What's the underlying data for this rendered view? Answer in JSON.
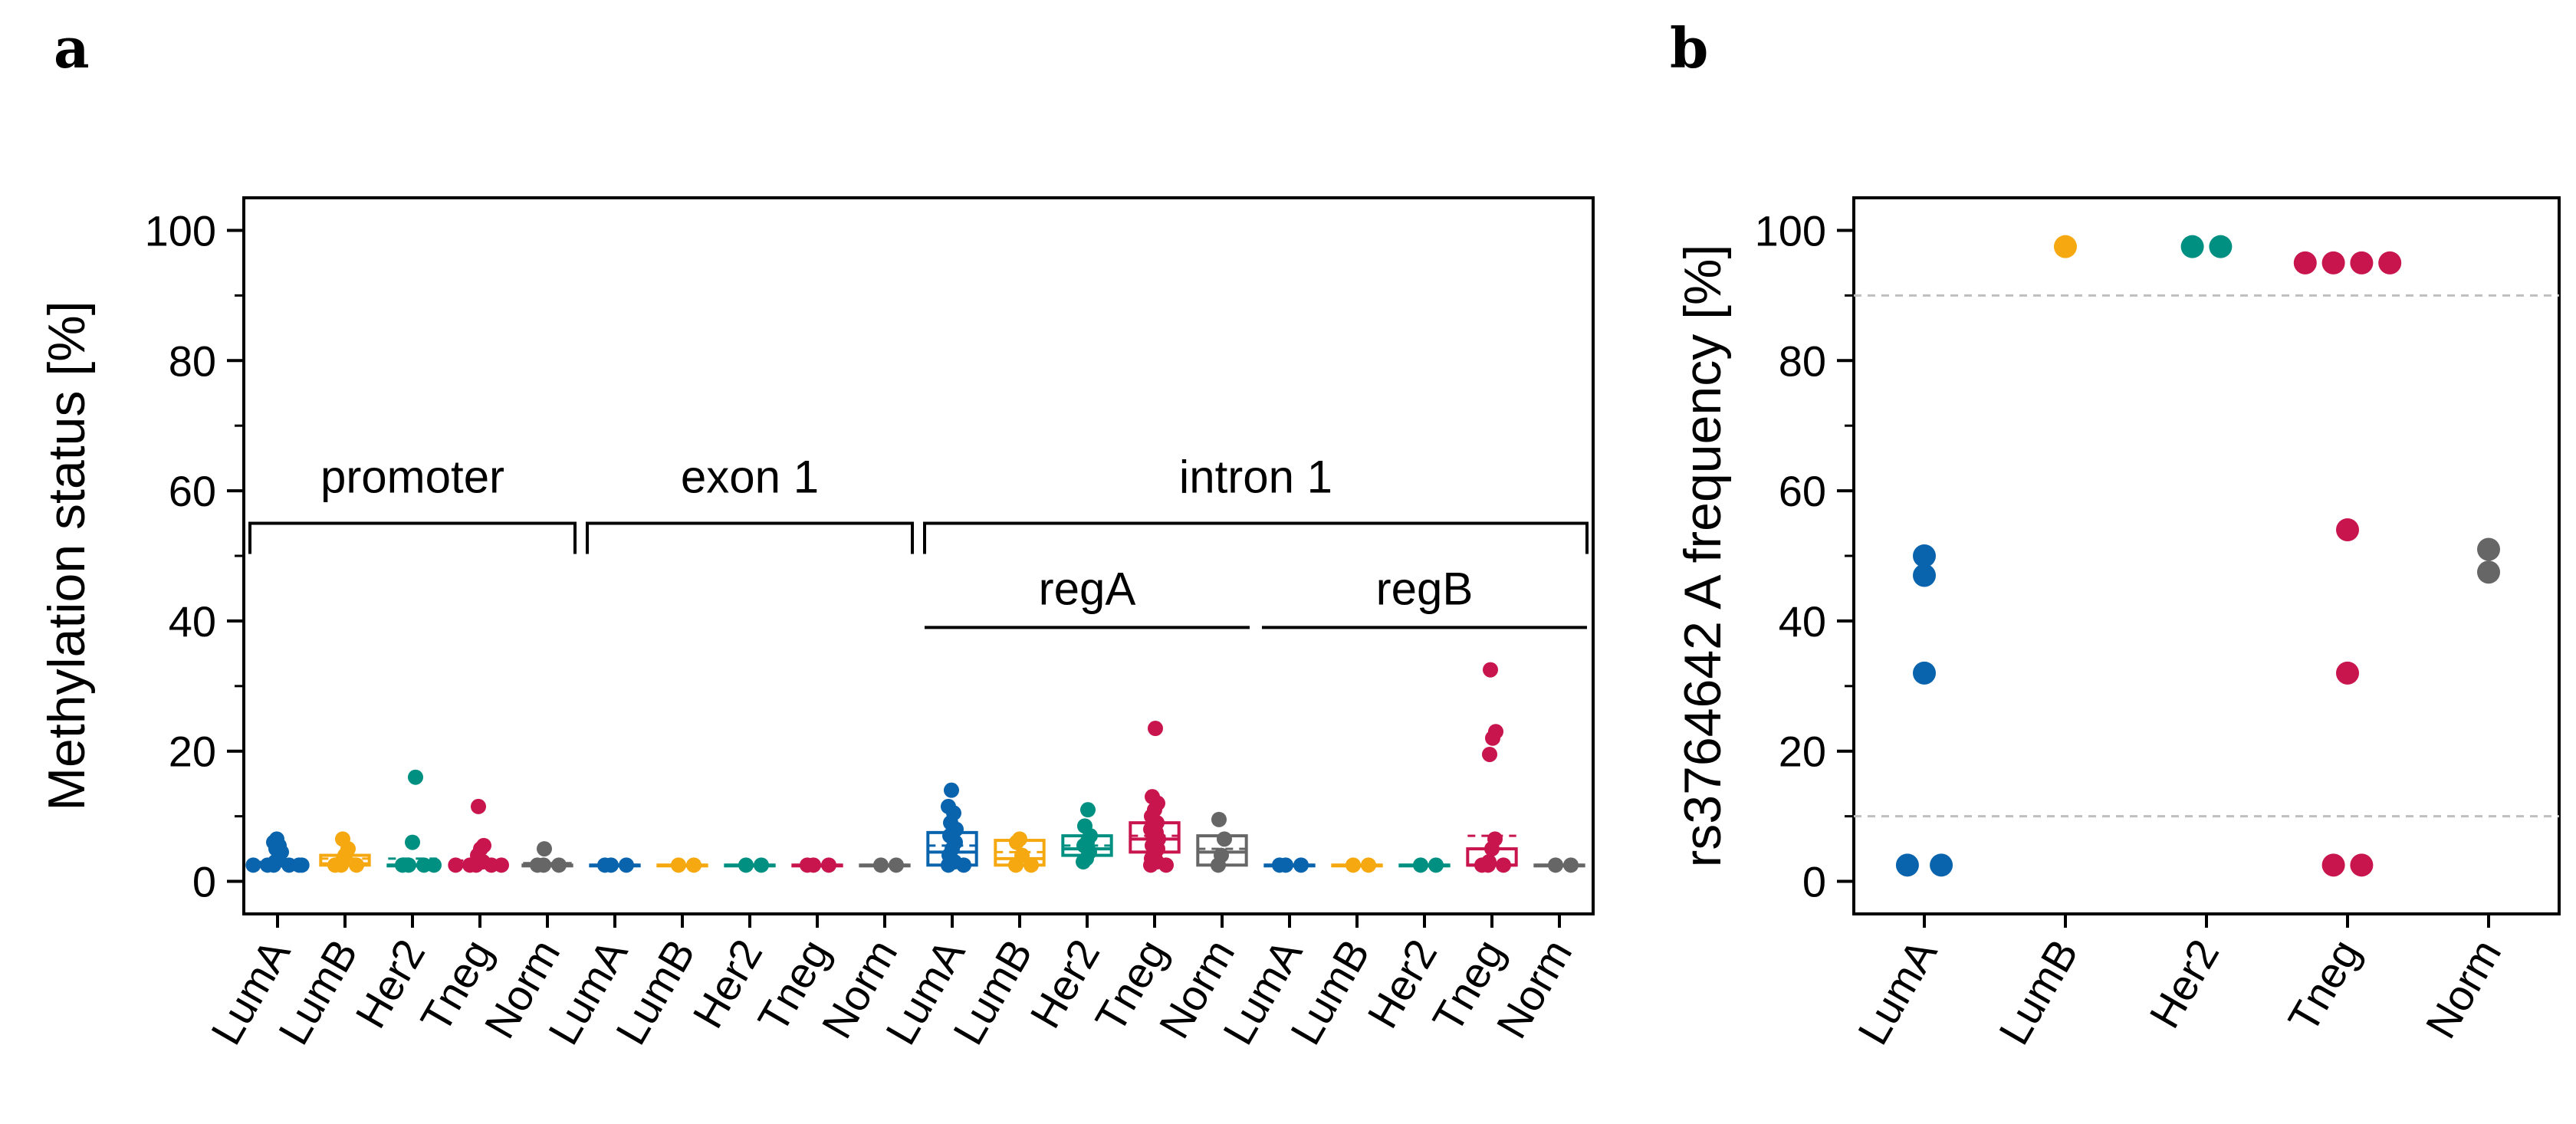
{
  "colors": {
    "LumA": "#0a64ad",
    "LumB": "#f5a80f",
    "Her2": "#009081",
    "Tneg": "#c8154d",
    "Norm": "#666666",
    "axis": "#000000",
    "guide": "#bfbfbf"
  },
  "chart_data": [
    {
      "panel": "a",
      "type": "box",
      "ylabel": "Methylation status [%]",
      "ylim": [
        -5,
        105
      ],
      "yticks": [
        0,
        20,
        40,
        60,
        80,
        100
      ],
      "ytick_labels": [
        "0",
        "20",
        "40",
        "60",
        "80",
        "100"
      ],
      "regions": [
        {
          "label": "promoter",
          "groups": [
            0,
            4
          ]
        },
        {
          "label": "exon 1",
          "groups": [
            5,
            9
          ]
        },
        {
          "label": "intron 1",
          "groups": [
            10,
            19
          ]
        }
      ],
      "subregions": [
        {
          "label": "regA",
          "groups": [
            10,
            14
          ]
        },
        {
          "label": "regB",
          "groups": [
            15,
            19
          ]
        }
      ],
      "groups": [
        {
          "label": "LumA",
          "subtype": "LumA",
          "box": [
            2.5,
            2.5,
            2.5
          ],
          "mean": 3.0,
          "points": [
            2.5,
            2.5,
            2.5,
            2.5,
            2.5,
            2.5,
            3.0,
            3.5,
            4.5,
            5.0,
            5.5,
            6.0,
            6.5
          ]
        },
        {
          "label": "LumB",
          "subtype": "LumB",
          "box": [
            2.5,
            2.7,
            4.0
          ],
          "mean": 3.5,
          "points": [
            2.5,
            2.5,
            2.5,
            3.0,
            4.0,
            5.0,
            6.5
          ]
        },
        {
          "label": "Her2",
          "subtype": "Her2",
          "box": [
            2.5,
            2.5,
            2.5
          ],
          "mean": 3.5,
          "points": [
            2.5,
            2.5,
            2.5,
            2.5,
            6.0,
            16.0
          ]
        },
        {
          "label": "Tneg",
          "subtype": "Tneg",
          "box": [
            2.5,
            2.5,
            2.5
          ],
          "mean": 3.2,
          "points": [
            2.5,
            2.5,
            2.5,
            2.5,
            2.5,
            3.0,
            4.0,
            5.0,
            5.5,
            11.5
          ]
        },
        {
          "label": "Norm",
          "subtype": "Norm",
          "box": [
            2.5,
            2.5,
            2.5
          ],
          "mean": 2.8,
          "points": [
            2.5,
            2.5,
            2.5,
            5.0
          ]
        },
        {
          "label": "LumA",
          "subtype": "LumA",
          "box": [
            2.5,
            2.5,
            2.5
          ],
          "mean": 2.5,
          "points": [
            2.5,
            2.5,
            2.5
          ]
        },
        {
          "label": "LumB",
          "subtype": "LumB",
          "box": [
            2.5,
            2.5,
            2.5
          ],
          "mean": 2.5,
          "points": [
            2.5,
            2.5
          ]
        },
        {
          "label": "Her2",
          "subtype": "Her2",
          "box": [
            2.5,
            2.5,
            2.5
          ],
          "mean": 2.5,
          "points": [
            2.5,
            2.5
          ]
        },
        {
          "label": "Tneg",
          "subtype": "Tneg",
          "box": [
            2.5,
            2.5,
            2.5
          ],
          "mean": 2.5,
          "points": [
            2.5,
            2.5,
            2.5
          ]
        },
        {
          "label": "Norm",
          "subtype": "Norm",
          "box": [
            2.5,
            2.5,
            2.5
          ],
          "mean": 2.5,
          "points": [
            2.5,
            2.5
          ]
        },
        {
          "label": "LumA",
          "subtype": "LumA",
          "box": [
            2.5,
            4.5,
            7.5
          ],
          "mean": 5.5,
          "points": [
            2.5,
            2.5,
            3.0,
            4.0,
            5.0,
            6.0,
            7.0,
            7.5,
            8.0,
            9.0,
            10.5,
            11.5,
            14.0
          ]
        },
        {
          "label": "LumB",
          "subtype": "LumB",
          "box": [
            2.5,
            3.5,
            6.3
          ],
          "mean": 4.5,
          "points": [
            2.5,
            2.5,
            4.0,
            6.0,
            6.5
          ]
        },
        {
          "label": "Her2",
          "subtype": "Her2",
          "box": [
            4.0,
            5.0,
            7.0
          ],
          "mean": 5.5,
          "points": [
            3.0,
            3.5,
            4.5,
            5.5,
            6.0,
            7.0,
            8.5,
            11.0
          ]
        },
        {
          "label": "Tneg",
          "subtype": "Tneg",
          "box": [
            4.5,
            6.5,
            9.0
          ],
          "mean": 7.0,
          "points": [
            2.5,
            2.5,
            3.0,
            3.5,
            4.0,
            5.0,
            5.5,
            6.0,
            6.5,
            7.0,
            7.5,
            8.0,
            8.5,
            9.0,
            10.0,
            11.0,
            12.0,
            13.0,
            23.5
          ]
        },
        {
          "label": "Norm",
          "subtype": "Norm",
          "box": [
            2.5,
            4.5,
            7.0
          ],
          "mean": 5.0,
          "points": [
            2.5,
            4.0,
            6.5,
            9.5
          ]
        },
        {
          "label": "LumA",
          "subtype": "LumA",
          "box": [
            2.5,
            2.5,
            2.5
          ],
          "mean": 2.5,
          "points": [
            2.5,
            2.5,
            2.5
          ]
        },
        {
          "label": "LumB",
          "subtype": "LumB",
          "box": [
            2.5,
            2.5,
            2.5
          ],
          "mean": 2.5,
          "points": [
            2.5,
            2.5
          ]
        },
        {
          "label": "Her2",
          "subtype": "Her2",
          "box": [
            2.5,
            2.5,
            2.5
          ],
          "mean": 2.5,
          "points": [
            2.5,
            2.5
          ]
        },
        {
          "label": "Tneg",
          "subtype": "Tneg",
          "box": [
            2.5,
            2.5,
            5.0
          ],
          "mean": 7.0,
          "points": [
            2.5,
            2.5,
            2.5,
            3.0,
            5.0,
            6.5,
            19.5,
            22.0,
            23.0,
            32.5
          ]
        },
        {
          "label": "Norm",
          "subtype": "Norm",
          "box": [
            2.5,
            2.5,
            2.5
          ],
          "mean": 2.5,
          "points": [
            2.5,
            2.5
          ]
        }
      ]
    },
    {
      "panel": "b",
      "type": "scatter",
      "ylabel": "rs3764642 A frequency [%]",
      "ylim": [
        -5,
        105
      ],
      "yticks": [
        0,
        20,
        40,
        60,
        80,
        100
      ],
      "ytick_labels": [
        "0",
        "20",
        "40",
        "60",
        "80",
        "100"
      ],
      "reference_lines": [
        10,
        90
      ],
      "categories": [
        "LumA",
        "LumB",
        "Her2",
        "Tneg",
        "Norm"
      ],
      "points": [
        {
          "category": "LumA",
          "offset": 0,
          "y": 50.0
        },
        {
          "category": "LumA",
          "offset": 0,
          "y": 47.0
        },
        {
          "category": "LumA",
          "offset": 0,
          "y": 32.0
        },
        {
          "category": "LumA",
          "offset": -0.12,
          "y": 2.5
        },
        {
          "category": "LumA",
          "offset": 0.12,
          "y": 2.5
        },
        {
          "category": "LumB",
          "offset": 0,
          "y": 97.5
        },
        {
          "category": "Her2",
          "offset": -0.1,
          "y": 97.5
        },
        {
          "category": "Her2",
          "offset": 0.1,
          "y": 97.5
        },
        {
          "category": "Tneg",
          "offset": -0.3,
          "y": 95.0
        },
        {
          "category": "Tneg",
          "offset": -0.1,
          "y": 95.0
        },
        {
          "category": "Tneg",
          "offset": 0.1,
          "y": 95.0
        },
        {
          "category": "Tneg",
          "offset": 0.3,
          "y": 95.0
        },
        {
          "category": "Tneg",
          "offset": 0,
          "y": 54.0
        },
        {
          "category": "Tneg",
          "offset": 0,
          "y": 32.0
        },
        {
          "category": "Tneg",
          "offset": -0.1,
          "y": 2.5
        },
        {
          "category": "Tneg",
          "offset": 0.1,
          "y": 2.5
        },
        {
          "category": "Norm",
          "offset": 0,
          "y": 51.0
        },
        {
          "category": "Norm",
          "offset": 0,
          "y": 47.5
        }
      ]
    }
  ],
  "panel_letters": {
    "a": "a",
    "b": "b"
  }
}
